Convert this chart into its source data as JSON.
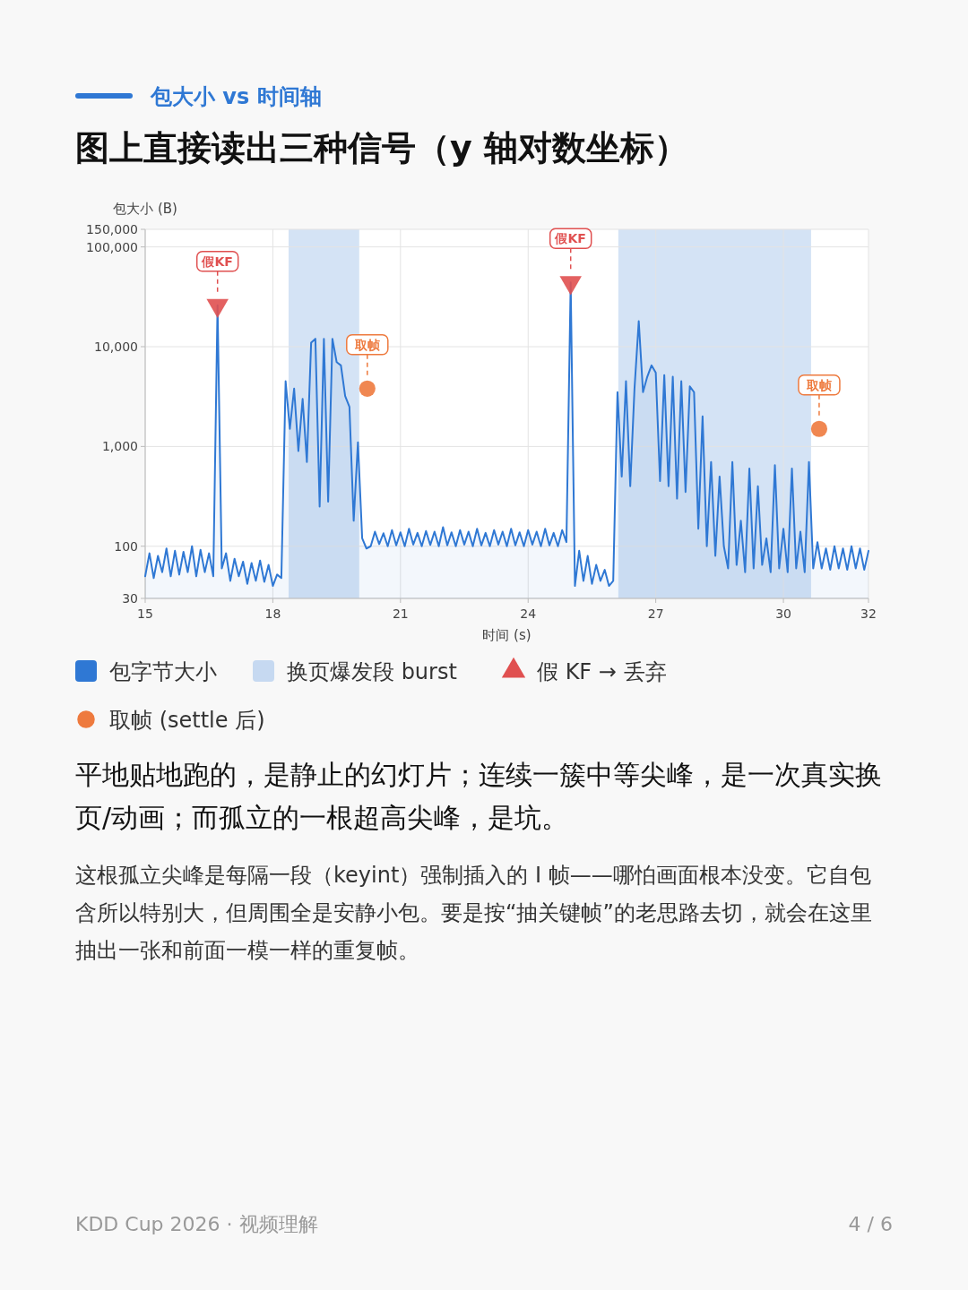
{
  "chart_data": {
    "type": "area",
    "subtitle": "包大小 vs 时间轴",
    "title": "图上直接读出三种信号（y 轴对数坐标）",
    "xlabel": "时间 (s)",
    "ylabel": "包大小 (B)",
    "log": "y",
    "grid": true,
    "legend": "bottom",
    "xlim": [
      15,
      32
    ],
    "xticks": [
      15,
      18,
      21,
      24,
      27,
      30,
      32
    ],
    "ylim": [
      30,
      150000
    ],
    "yticks": [
      30,
      100,
      {
        "value": 1000,
        "label": "1,000"
      },
      {
        "value": 10000,
        "label": "10,000"
      },
      {
        "value": 100000,
        "label": "100,000"
      },
      {
        "value": 150000,
        "label": "150,000"
      }
    ],
    "bands": [
      {
        "axis": "x",
        "from": 18.37,
        "to": 20.03,
        "label": "换页爆发段 burst",
        "color": "#c6d9f1"
      },
      {
        "axis": "x",
        "from": 26.12,
        "to": 30.65,
        "color": "#c6d9f1"
      }
    ],
    "series": [
      {
        "name": "包字节大小",
        "color": "#2f78d4",
        "marker": "none",
        "x": [
          15.0,
          15.1,
          15.2,
          15.3,
          15.4,
          15.5,
          15.6,
          15.7,
          15.8,
          15.9,
          16.0,
          16.1,
          16.2,
          16.3,
          16.4,
          16.5,
          16.6,
          16.7,
          16.8,
          16.9,
          17.0,
          17.1,
          17.2,
          17.3,
          17.4,
          17.5,
          17.6,
          17.7,
          17.8,
          17.9,
          18.0,
          18.1,
          18.2,
          18.3,
          18.4,
          18.5,
          18.6,
          18.7,
          18.8,
          18.9,
          19.0,
          19.1,
          19.2,
          19.3,
          19.4,
          19.5,
          19.6,
          19.7,
          19.8,
          19.9,
          20.0,
          20.1,
          20.2,
          20.3,
          20.4,
          20.5,
          20.6,
          20.7,
          20.8,
          20.9,
          21.0,
          21.1,
          21.2,
          21.3,
          21.4,
          21.5,
          21.6,
          21.7,
          21.8,
          21.9,
          22.0,
          22.1,
          22.2,
          22.3,
          22.4,
          22.5,
          22.6,
          22.7,
          22.8,
          22.9,
          23.0,
          23.1,
          23.2,
          23.3,
          23.4,
          23.5,
          23.6,
          23.7,
          23.8,
          23.9,
          24.0,
          24.1,
          24.2,
          24.3,
          24.4,
          24.5,
          24.6,
          24.7,
          24.8,
          24.9,
          25.0,
          25.1,
          25.2,
          25.3,
          25.4,
          25.5,
          25.6,
          25.7,
          25.8,
          25.9,
          26.0,
          26.1,
          26.2,
          26.3,
          26.4,
          26.5,
          26.6,
          26.7,
          26.8,
          26.9,
          27.0,
          27.1,
          27.2,
          27.3,
          27.4,
          27.5,
          27.6,
          27.7,
          27.8,
          27.9,
          28.0,
          28.1,
          28.2,
          28.3,
          28.4,
          28.5,
          28.6,
          28.7,
          28.8,
          28.9,
          29.0,
          29.1,
          29.2,
          29.3,
          29.4,
          29.5,
          29.6,
          29.7,
          29.8,
          29.9,
          30.0,
          30.1,
          30.2,
          30.3,
          30.4,
          30.5,
          30.6,
          30.7,
          30.8,
          30.9,
          31.0,
          31.1,
          31.2,
          31.3,
          31.4,
          31.5,
          31.6,
          31.7,
          31.8,
          31.9,
          32.0
        ],
        "values": [
          50,
          85,
          48,
          80,
          55,
          95,
          50,
          90,
          52,
          88,
          55,
          100,
          50,
          92,
          55,
          85,
          50,
          26000,
          60,
          85,
          45,
          75,
          50,
          70,
          42,
          68,
          45,
          72,
          44,
          65,
          40,
          52,
          48,
          4500,
          1500,
          3800,
          900,
          3000,
          700,
          11000,
          12000,
          250,
          12000,
          280,
          12000,
          7000,
          6500,
          3200,
          2500,
          180,
          1100,
          120,
          95,
          100,
          140,
          105,
          135,
          100,
          145,
          102,
          138,
          100,
          150,
          104,
          136,
          100,
          142,
          103,
          140,
          100,
          155,
          102,
          138,
          100,
          145,
          104,
          140,
          100,
          150,
          102,
          136,
          100,
          145,
          104,
          140,
          100,
          150,
          102,
          138,
          100,
          145,
          104,
          140,
          100,
          150,
          102,
          136,
          100,
          145,
          110,
          44000,
          40,
          90,
          45,
          80,
          42,
          65,
          45,
          58,
          40,
          45,
          3500,
          500,
          4500,
          400,
          3800,
          18000,
          3500,
          5000,
          6500,
          5500,
          450,
          5200,
          400,
          5000,
          300,
          4500,
          350,
          4000,
          3500,
          150,
          2000,
          100,
          700,
          80,
          500,
          100,
          60,
          700,
          65,
          180,
          55,
          600,
          60,
          400,
          65,
          120,
          55,
          650,
          60,
          150,
          55,
          600,
          60,
          140,
          55,
          700,
          60,
          110,
          60,
          95,
          58,
          100,
          60,
          95,
          58,
          100,
          60,
          95,
          58,
          90
        ]
      },
      {
        "name": "假 KF → 丢弃",
        "type": "scatter",
        "marker": "triangle",
        "color": "#e05050",
        "x": [
          16.7,
          25.0
        ],
        "values": [
          26000,
          44000
        ]
      },
      {
        "name": "取帧 (settle 后)",
        "type": "scatter",
        "marker": "circle",
        "color": "#ee7a3e",
        "x": [
          20.22,
          30.84
        ],
        "values": [
          3800,
          1500
        ]
      }
    ],
    "annotations": [
      {
        "text": "假KF",
        "x": 16.7,
        "y": 26000
      },
      {
        "text": "取帧",
        "x": 20.22,
        "y": 3800
      },
      {
        "text": "假KF",
        "x": 25.0,
        "y": 44000
      },
      {
        "text": "取帧",
        "x": 30.84,
        "y": 1500
      },
      "平地贴地跑的，是静止的幻灯片；连续一簇中等尖峰，是一次真实换页/动画；而孤立的一根超高尖峰，是坑。",
      "这根孤立尖峰是每隔一段（keyint）强制插入的 I 帧——哪怕画面根本没变。它自包含所以特别大，但周围全是安静小包。要是按“抽关键帧”的老思路去切，就会在这里抽出一张和前面一模一样的重复帧。",
      "KDD Cup 2026 · 视频理解",
      "4 / 6"
    ]
  }
}
